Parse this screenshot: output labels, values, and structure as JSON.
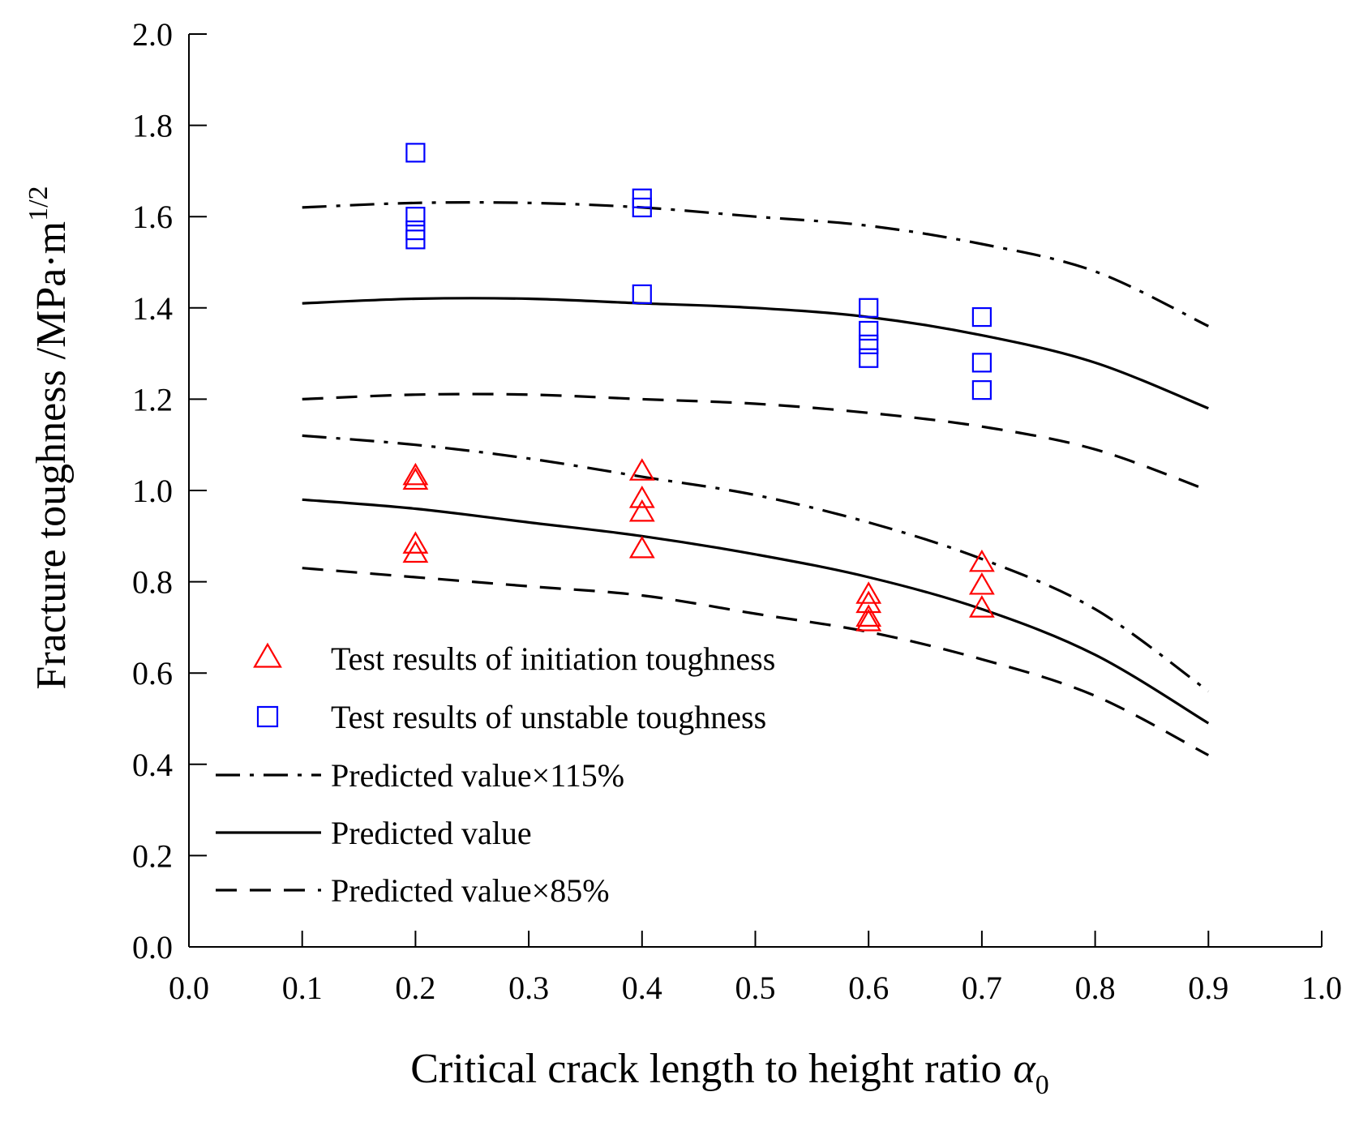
{
  "chart_data": {
    "type": "scatter",
    "title": "",
    "xlabel": "Critical crack length to height ratio",
    "xlabel_symbol": "α",
    "xlabel_subscript": "0",
    "ylabel": "Fracture toughness /MPa·m",
    "ylabel_superscript": "1/2",
    "xlim": [
      0.0,
      1.0
    ],
    "ylim": [
      0.0,
      2.0
    ],
    "x_ticks": [
      "0.0",
      "0.1",
      "0.2",
      "0.3",
      "0.4",
      "0.5",
      "0.6",
      "0.7",
      "0.8",
      "0.9",
      "1.0"
    ],
    "y_ticks": [
      "0.0",
      "0.2",
      "0.4",
      "0.6",
      "0.8",
      "1.0",
      "1.2",
      "1.4",
      "1.6",
      "1.8",
      "2.0"
    ],
    "grid": false,
    "legend_position": "bottom-left",
    "series": [
      {
        "name": "Test results of initiation toughness",
        "kind": "scatter",
        "marker": "triangle",
        "color": "#ff0000",
        "points": [
          [
            0.2,
            1.03
          ],
          [
            0.2,
            1.02
          ],
          [
            0.2,
            0.88
          ],
          [
            0.2,
            0.86
          ],
          [
            0.4,
            1.04
          ],
          [
            0.4,
            0.98
          ],
          [
            0.4,
            0.95
          ],
          [
            0.4,
            0.87
          ],
          [
            0.6,
            0.77
          ],
          [
            0.6,
            0.75
          ],
          [
            0.6,
            0.72
          ],
          [
            0.6,
            0.71
          ],
          [
            0.7,
            0.84
          ],
          [
            0.7,
            0.79
          ],
          [
            0.7,
            0.74
          ]
        ]
      },
      {
        "name": "Test results of unstable toughness",
        "kind": "scatter",
        "marker": "square",
        "color": "#0000ff",
        "points": [
          [
            0.2,
            1.74
          ],
          [
            0.2,
            1.6
          ],
          [
            0.2,
            1.57
          ],
          [
            0.2,
            1.55
          ],
          [
            0.4,
            1.64
          ],
          [
            0.4,
            1.62
          ],
          [
            0.4,
            1.43
          ],
          [
            0.6,
            1.4
          ],
          [
            0.6,
            1.35
          ],
          [
            0.6,
            1.32
          ],
          [
            0.6,
            1.29
          ],
          [
            0.7,
            1.38
          ],
          [
            0.7,
            1.28
          ],
          [
            0.7,
            1.22
          ]
        ]
      },
      {
        "name": "Predicted value×115%",
        "kind": "line",
        "style": "dashdot",
        "color": "#000000",
        "curves": [
          {
            "x": [
              0.1,
              0.2,
              0.3,
              0.4,
              0.5,
              0.6,
              0.7,
              0.8,
              0.9
            ],
            "y": [
              1.62,
              1.63,
              1.63,
              1.62,
              1.6,
              1.58,
              1.54,
              1.48,
              1.36
            ]
          },
          {
            "x": [
              0.1,
              0.2,
              0.3,
              0.4,
              0.5,
              0.6,
              0.7,
              0.8,
              0.9
            ],
            "y": [
              1.12,
              1.1,
              1.07,
              1.03,
              0.99,
              0.93,
              0.85,
              0.74,
              0.56
            ]
          }
        ]
      },
      {
        "name": "Predicted value",
        "kind": "line",
        "style": "solid",
        "color": "#000000",
        "curves": [
          {
            "x": [
              0.1,
              0.2,
              0.3,
              0.4,
              0.5,
              0.6,
              0.7,
              0.8,
              0.9
            ],
            "y": [
              1.41,
              1.42,
              1.42,
              1.41,
              1.4,
              1.38,
              1.34,
              1.28,
              1.18
            ]
          },
          {
            "x": [
              0.1,
              0.2,
              0.3,
              0.4,
              0.5,
              0.6,
              0.7,
              0.8,
              0.9
            ],
            "y": [
              0.98,
              0.96,
              0.93,
              0.9,
              0.86,
              0.81,
              0.74,
              0.64,
              0.49
            ]
          }
        ]
      },
      {
        "name": "Predicted value×85%",
        "kind": "line",
        "style": "dashed",
        "color": "#000000",
        "curves": [
          {
            "x": [
              0.1,
              0.2,
              0.3,
              0.4,
              0.5,
              0.6,
              0.7,
              0.8,
              0.9
            ],
            "y": [
              1.2,
              1.21,
              1.21,
              1.2,
              1.19,
              1.17,
              1.14,
              1.09,
              1.0
            ]
          },
          {
            "x": [
              0.1,
              0.2,
              0.3,
              0.4,
              0.5,
              0.6,
              0.7,
              0.8,
              0.9
            ],
            "y": [
              0.83,
              0.81,
              0.79,
              0.77,
              0.73,
              0.69,
              0.63,
              0.55,
              0.42
            ]
          }
        ]
      }
    ]
  }
}
